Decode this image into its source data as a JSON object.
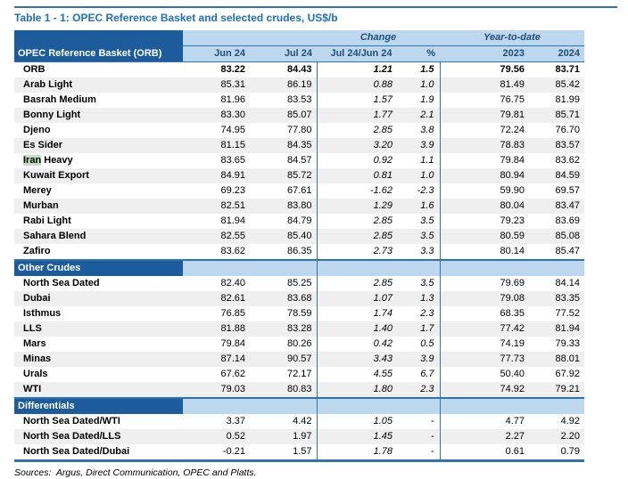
{
  "title": "Table 1 - 1: OPEC Reference Basket and selected crudes, US$/b",
  "sources": "Sources:  Argus, Direct Communication, OPEC and Platts.",
  "colors": {
    "line": "#2E74B5",
    "darkblue": "#1D5C9C",
    "lightblue": "#BDD7EE",
    "hdr": "#1F4E79",
    "title": "#1E6FC0",
    "altrow": "#EFEFEF",
    "green": "#C3DEC3"
  },
  "table": {
    "header": {
      "col_label": "OPEC Reference Basket (ORB)",
      "group_change": "Change",
      "group_ytd": "Year-to-date",
      "columns": [
        "Jun 24",
        "Jul 24",
        "Jul 24/Jun 24",
        "%",
        "2023",
        "2024"
      ]
    },
    "sections": [
      {
        "name": null,
        "rows": [
          {
            "label": "ORB",
            "jun": "83.22",
            "jul": "84.43",
            "chg": "1.21",
            "pct": "1.5",
            "y23": "79.56",
            "y24": "83.71",
            "bold": true
          },
          {
            "label": "Arab Light",
            "jun": "85.31",
            "jul": "86.19",
            "chg": "0.88",
            "pct": "1.0",
            "y23": "81.49",
            "y24": "85.42"
          },
          {
            "label": "Basrah Medium",
            "jun": "81.96",
            "jul": "83.53",
            "chg": "1.57",
            "pct": "1.9",
            "y23": "76.75",
            "y24": "81.99"
          },
          {
            "label": "Bonny Light",
            "jun": "83.30",
            "jul": "85.07",
            "chg": "1.77",
            "pct": "2.1",
            "y23": "79.81",
            "y24": "85.71"
          },
          {
            "label": "Djeno",
            "jun": "74.95",
            "jul": "77.80",
            "chg": "2.85",
            "pct": "3.8",
            "y23": "72.24",
            "y24": "76.70"
          },
          {
            "label": "Es Sider",
            "jun": "81.15",
            "jul": "84.35",
            "chg": "3.20",
            "pct": "3.9",
            "y23": "78.83",
            "y24": "83.57"
          },
          {
            "label": "Iran Heavy",
            "highlight": "Iran",
            "jun": "83.65",
            "jul": "84.57",
            "chg": "0.92",
            "pct": "1.1",
            "y23": "79.84",
            "y24": "83.62"
          },
          {
            "label": "Kuwait Export",
            "jun": "84.91",
            "jul": "85.72",
            "chg": "0.81",
            "pct": "1.0",
            "y23": "80.94",
            "y24": "84.59"
          },
          {
            "label": "Merey",
            "jun": "69.23",
            "jul": "67.61",
            "chg": "-1.62",
            "pct": "-2.3",
            "y23": "59.90",
            "y24": "69.57"
          },
          {
            "label": "Murban",
            "jun": "82.51",
            "jul": "83.80",
            "chg": "1.29",
            "pct": "1.6",
            "y23": "80.04",
            "y24": "83.47"
          },
          {
            "label": "Rabi Light",
            "jun": "81.94",
            "jul": "84.79",
            "chg": "2.85",
            "pct": "3.5",
            "y23": "79.23",
            "y24": "83.69"
          },
          {
            "label": "Sahara Blend",
            "jun": "82.55",
            "jul": "85.40",
            "chg": "2.85",
            "pct": "3.5",
            "y23": "80.59",
            "y24": "85.08"
          },
          {
            "label": "Zafiro",
            "jun": "83.62",
            "jul": "86.35",
            "chg": "2.73",
            "pct": "3.3",
            "y23": "80.14",
            "y24": "85.47"
          }
        ]
      },
      {
        "name": "Other Crudes",
        "rows": [
          {
            "label": "North Sea Dated",
            "jun": "82.40",
            "jul": "85.25",
            "chg": "2.85",
            "pct": "3.5",
            "y23": "79.69",
            "y24": "84.14"
          },
          {
            "label": "Dubai",
            "jun": "82.61",
            "jul": "83.68",
            "chg": "1.07",
            "pct": "1.3",
            "y23": "79.08",
            "y24": "83.35"
          },
          {
            "label": "Isthmus",
            "jun": "76.85",
            "jul": "78.59",
            "chg": "1.74",
            "pct": "2.3",
            "y23": "68.35",
            "y24": "77.52"
          },
          {
            "label": "LLS",
            "jun": "81.88",
            "jul": "83.28",
            "chg": "1.40",
            "pct": "1.7",
            "y23": "77.42",
            "y24": "81.94"
          },
          {
            "label": "Mars",
            "jun": "79.84",
            "jul": "80.26",
            "chg": "0.42",
            "pct": "0.5",
            "y23": "74.19",
            "y24": "79.33"
          },
          {
            "label": "Minas",
            "jun": "87.14",
            "jul": "90.57",
            "chg": "3.43",
            "pct": "3.9",
            "y23": "77.73",
            "y24": "88.01"
          },
          {
            "label": "Urals",
            "jun": "67.62",
            "jul": "72.17",
            "chg": "4.55",
            "pct": "6.7",
            "y23": "50.40",
            "y24": "67.92"
          },
          {
            "label": "WTI",
            "jun": "79.03",
            "jul": "80.83",
            "chg": "1.80",
            "pct": "2.3",
            "y23": "74.92",
            "y24": "79.21"
          }
        ]
      },
      {
        "name": "Differentials",
        "rows": [
          {
            "label": "North Sea Dated/WTI",
            "jun": "3.37",
            "jul": "4.42",
            "chg": "1.05",
            "pct": "-",
            "y23": "4.77",
            "y24": "4.92"
          },
          {
            "label": "North Sea Dated/LLS",
            "jun": "0.52",
            "jul": "1.97",
            "chg": "1.45",
            "pct": "-",
            "y23": "2.27",
            "y24": "2.20"
          },
          {
            "label": "North Sea Dated/Dubai",
            "jun": "-0.21",
            "jul": "1.57",
            "chg": "1.78",
            "pct": "-",
            "y23": "0.61",
            "y24": "0.79"
          }
        ]
      }
    ]
  }
}
